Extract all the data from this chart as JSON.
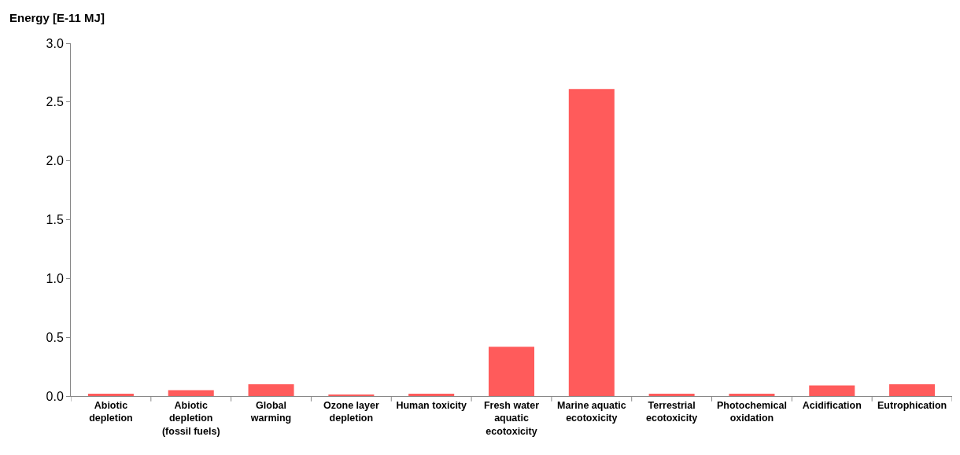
{
  "chart_data": {
    "type": "bar",
    "ylabel": "Energy [E-11 MJ]",
    "categories": [
      "Abiotic\ndepletion",
      "Abiotic\ndepletion\n(fossil fuels)",
      "Global\nwarming",
      "Ozone layer\ndepletion",
      "Human toxicity",
      "Fresh water\naquatic\necotoxicity",
      "Marine aquatic\necotoxicity",
      "Terrestrial\necotoxicity",
      "Photochemical\noxidation",
      "Acidification",
      "Eutrophication"
    ],
    "values": [
      0.02,
      0.05,
      0.1,
      0.01,
      0.02,
      0.42,
      2.61,
      0.02,
      0.02,
      0.09,
      0.1
    ],
    "color": "#ff5b5b",
    "ylim": [
      0,
      3
    ],
    "yticks": [
      {
        "value": 0,
        "label": "0.0"
      },
      {
        "value": 0.5,
        "label": "0.5"
      },
      {
        "value": 1,
        "label": "1.0"
      },
      {
        "value": 1.5,
        "label": "1.5"
      },
      {
        "value": 2,
        "label": "2.0"
      },
      {
        "value": 2.5,
        "label": "2.5"
      },
      {
        "value": 3,
        "label": "3.0"
      }
    ],
    "legend": false
  }
}
